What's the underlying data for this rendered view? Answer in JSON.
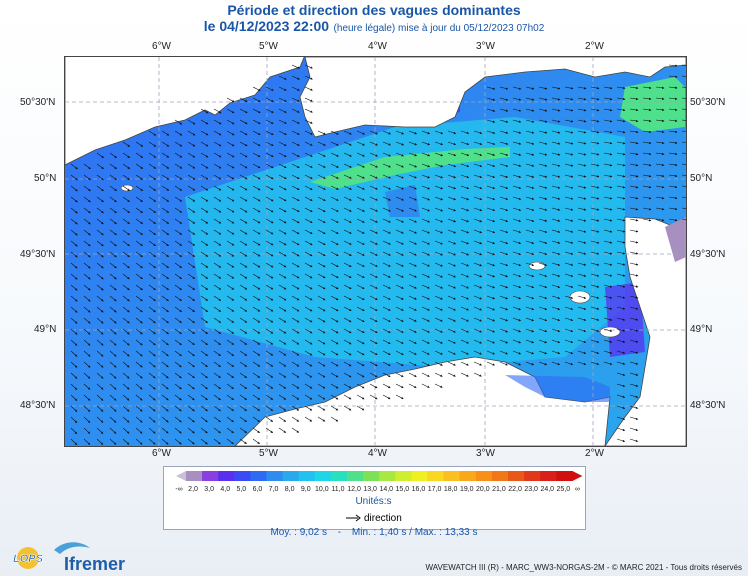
{
  "title": {
    "line1": "Période et direction des vagues dominantes",
    "date": "le 04/12/2023 22:00",
    "subtitle": "(heure légale) mise à jour du 05/12/2023 07h02"
  },
  "axes": {
    "lon_labels": [
      "6°W",
      "5°W",
      "4°W",
      "3°W",
      "2°W"
    ],
    "lat_labels": [
      "50°30'N",
      "50°N",
      "49°30'N",
      "49°N",
      "48°30'N"
    ]
  },
  "legend": {
    "values": [
      "2,0",
      "3,0",
      "4,0",
      "5,0",
      "6,0",
      "7,0",
      "8,0",
      "9,0",
      "10,0",
      "11,0",
      "12,0",
      "13,0",
      "14,0",
      "15,0",
      "16,0",
      "17,0",
      "18,0",
      "19,0",
      "20,0",
      "21,0",
      "22,0",
      "23,0",
      "24,0",
      "25,0"
    ],
    "low_symbol": "-∞",
    "high_symbol": "∞",
    "colors": [
      "#a78fbf",
      "#8a3fe0",
      "#5a30f0",
      "#3a4af5",
      "#2f6af5",
      "#2e8cf0",
      "#2aa8ee",
      "#22c1ef",
      "#1fd6e8",
      "#28e0c0",
      "#4ee08a",
      "#7ee055",
      "#a8e840",
      "#d0ee30",
      "#f0f020",
      "#f8d820",
      "#f8c020",
      "#f8a818",
      "#f89018",
      "#f07818",
      "#e85818",
      "#e03818",
      "#d82018",
      "#d01010"
    ],
    "unit": "Unités:s",
    "direction_label": "direction"
  },
  "stats": {
    "moy": "Moy. : 9,02 s",
    "sep": "-",
    "min": "Min. : 1,40 s / Max. : 13,33 s"
  },
  "footer": "WAVEWATCH III (R) - MARC_WW3-NORGAS-2M - © MARC 2021 - Tous droits réservés",
  "logos": {
    "lops": "LOPS",
    "ifremer": "Ifremer"
  }
}
